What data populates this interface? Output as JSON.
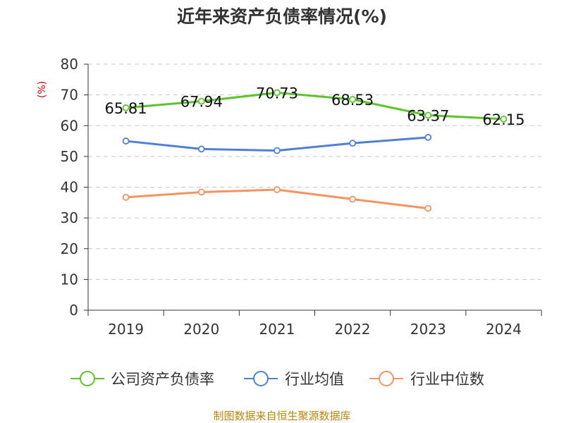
{
  "chart_data": {
    "type": "line",
    "title": "近年来资产负债率情况(%)",
    "ylabel": "(%)",
    "categories": [
      "2019",
      "2020",
      "2021",
      "2022",
      "2023",
      "2024"
    ],
    "ylim": [
      0,
      80
    ],
    "yticks": [
      0,
      10,
      20,
      30,
      40,
      50,
      60,
      70,
      80
    ],
    "grid": "horizontal-dashed",
    "legend_position": "bottom",
    "series": [
      {
        "name": "公司资产负债率",
        "color": "#5cc42b",
        "values": [
          65.81,
          67.94,
          70.73,
          68.53,
          63.37,
          62.15
        ],
        "labels": [
          "65.81",
          "67.94",
          "70.73",
          "68.53",
          "63.37",
          "62.15"
        ],
        "show_labels": true
      },
      {
        "name": "行业均值",
        "color": "#4f80d6",
        "values": [
          55.0,
          52.4,
          51.9,
          54.3,
          56.2,
          null
        ],
        "show_labels": false
      },
      {
        "name": "行业中位数",
        "color": "#f59360",
        "values": [
          36.7,
          38.4,
          39.2,
          36.1,
          33.1,
          null
        ],
        "show_labels": false
      }
    ],
    "source": "制图数据来自恒生聚源数据库"
  }
}
